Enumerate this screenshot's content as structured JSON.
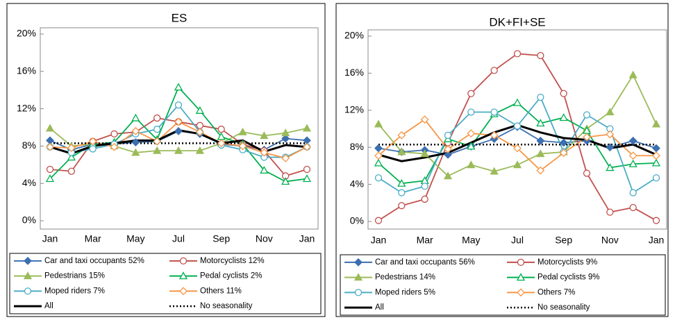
{
  "chart_data": [
    {
      "type": "line",
      "title": "ES",
      "categories": [
        "Jan",
        null,
        "Mar",
        null,
        "May",
        null,
        "Jul",
        null,
        "Sep",
        null,
        "Nov",
        null,
        "Jan"
      ],
      "ylim": [
        0,
        20
      ],
      "yticks": [
        {
          "value": 0,
          "label": "0%"
        },
        {
          "value": 4,
          "label": "4%"
        },
        {
          "value": 8,
          "label": "8%"
        },
        {
          "value": 12,
          "label": "12%"
        },
        {
          "value": 16,
          "label": "16%"
        },
        {
          "value": 20,
          "label": "20%"
        }
      ],
      "grid": false,
      "legend": "bottom",
      "series": [
        {
          "name": "Car and taxi occupants 52%",
          "color": "#3c6fb0",
          "marker": "diamond",
          "filled": true,
          "values": [
            8.6,
            7.6,
            8.2,
            8.2,
            8.4,
            8.5,
            9.6,
            9.3,
            8.2,
            8.0,
            7.6,
            8.8,
            8.6
          ]
        },
        {
          "name": "Motorcyclists 12%",
          "color": "#c0504d",
          "marker": "circle",
          "filled": false,
          "values": [
            5.5,
            5.3,
            8.5,
            9.3,
            9.5,
            11.0,
            10.6,
            10.2,
            9.8,
            8.2,
            7.5,
            4.8,
            5.5
          ]
        },
        {
          "name": "Pedestrians 15%",
          "color": "#9bbb59",
          "marker": "triangle",
          "filled": true,
          "values": [
            9.9,
            8.0,
            8.2,
            8.0,
            7.3,
            7.5,
            7.5,
            7.5,
            8.3,
            9.5,
            9.1,
            9.4,
            9.9
          ]
        },
        {
          "name": "Pedal cyclists 2%",
          "color": "#00b050",
          "marker": "triangle",
          "filled": false,
          "values": [
            4.5,
            6.8,
            8.2,
            8.4,
            11.0,
            8.7,
            14.3,
            11.8,
            9.0,
            8.2,
            5.4,
            4.2,
            4.5
          ]
        },
        {
          "name": "Moped riders 7%",
          "color": "#4bacc6",
          "marker": "circle",
          "filled": false,
          "values": [
            7.9,
            7.3,
            7.7,
            8.2,
            9.3,
            9.8,
            12.4,
            9.5,
            8.1,
            7.6,
            6.8,
            6.8,
            7.9
          ]
        },
        {
          "name": "Others 11%",
          "color": "#f79646",
          "marker": "diamond",
          "filled": false,
          "values": [
            7.9,
            7.8,
            8.5,
            7.9,
            9.6,
            8.5,
            10.6,
            9.5,
            8.3,
            8.0,
            7.3,
            6.7,
            7.9
          ]
        },
        {
          "name": "All",
          "color": "#000000",
          "marker": "none",
          "width": 3,
          "values": [
            7.9,
            7.2,
            8.0,
            8.3,
            8.6,
            8.6,
            9.7,
            9.3,
            8.3,
            8.6,
            7.4,
            8.1,
            7.9
          ]
        },
        {
          "name": "No seasonality",
          "color": "#000000",
          "marker": "none",
          "dash": "dotted",
          "values": [
            8.3,
            8.3,
            8.3,
            8.3,
            8.3,
            8.3,
            8.3,
            8.3,
            8.3,
            8.3,
            8.3,
            8.3,
            8.3
          ]
        }
      ]
    },
    {
      "type": "line",
      "title": "DK+FI+SE",
      "categories": [
        "Jan",
        null,
        "Mar",
        null,
        "May",
        null,
        "Jul",
        null,
        "Sep",
        null,
        "Nov",
        null,
        "Jan"
      ],
      "ylim": [
        0,
        20
      ],
      "yticks": [
        {
          "value": 0,
          "label": "0%"
        },
        {
          "value": 4,
          "label": "4%"
        },
        {
          "value": 8,
          "label": "8%"
        },
        {
          "value": 12,
          "label": "12%"
        },
        {
          "value": 16,
          "label": "16%"
        },
        {
          "value": 20,
          "label": "20%"
        }
      ],
      "grid": false,
      "legend": "bottom",
      "series": [
        {
          "name": "Car and taxi occupants 56%",
          "color": "#3c6fb0",
          "marker": "diamond",
          "filled": true,
          "values": [
            7.9,
            7.5,
            7.7,
            7.2,
            8.1,
            8.9,
            10.2,
            8.7,
            8.5,
            8.7,
            8.0,
            8.7,
            7.9
          ]
        },
        {
          "name": "Motorcyclists 9%",
          "color": "#c0504d",
          "marker": "circle",
          "filled": false,
          "values": [
            0.1,
            1.7,
            2.4,
            8.5,
            13.8,
            16.3,
            18.1,
            17.9,
            13.8,
            5.2,
            1.0,
            1.5,
            0.1
          ]
        },
        {
          "name": "Pedestrians 14%",
          "color": "#9bbb59",
          "marker": "triangle",
          "filled": true,
          "values": [
            10.5,
            7.5,
            7.3,
            4.9,
            6.1,
            5.4,
            6.1,
            7.3,
            7.5,
            10.0,
            11.8,
            15.8,
            10.5
          ]
        },
        {
          "name": "Pedal cyclists 9%",
          "color": "#00b050",
          "marker": "triangle",
          "filled": false,
          "values": [
            6.3,
            4.1,
            4.4,
            8.9,
            8.1,
            11.6,
            12.8,
            10.6,
            11.2,
            9.8,
            5.8,
            6.2,
            6.3
          ]
        },
        {
          "name": "Moped riders 5%",
          "color": "#4bacc6",
          "marker": "circle",
          "filled": false,
          "values": [
            4.7,
            3.1,
            3.8,
            9.3,
            11.8,
            11.8,
            10.3,
            13.4,
            7.5,
            11.5,
            10.0,
            3.1,
            4.7
          ]
        },
        {
          "name": "Others 7%",
          "color": "#f79646",
          "marker": "diamond",
          "filled": false,
          "values": [
            7.1,
            9.3,
            11.0,
            7.8,
            9.5,
            9.3,
            7.9,
            5.5,
            7.4,
            9.1,
            9.4,
            7.1,
            7.1
          ]
        },
        {
          "name": "All",
          "color": "#000000",
          "marker": "none",
          "width": 3,
          "values": [
            7.2,
            6.5,
            6.9,
            7.4,
            8.5,
            9.6,
            10.4,
            9.6,
            9.0,
            8.8,
            7.9,
            8.3,
            7.2
          ]
        },
        {
          "name": "No seasonality",
          "color": "#000000",
          "marker": "none",
          "dash": "dotted",
          "values": [
            8.3,
            8.3,
            8.3,
            8.3,
            8.3,
            8.3,
            8.3,
            8.3,
            8.3,
            8.3,
            8.3,
            8.3,
            8.3
          ]
        }
      ]
    }
  ]
}
